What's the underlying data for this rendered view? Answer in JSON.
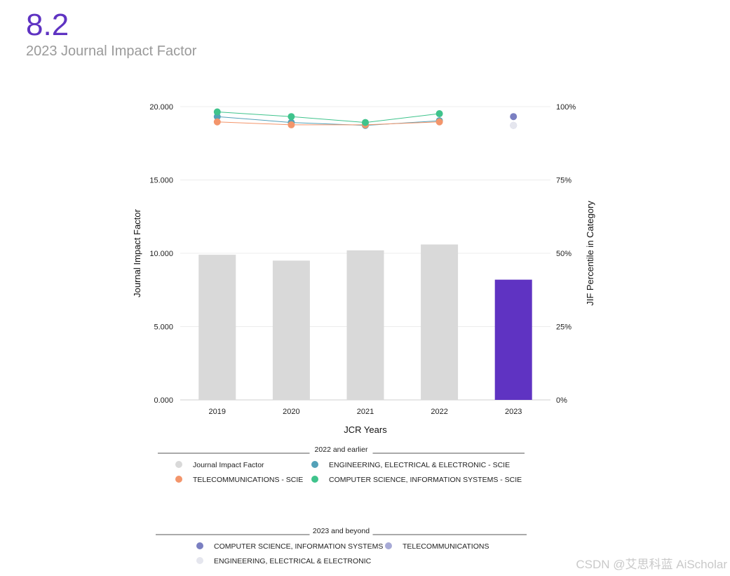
{
  "header": {
    "jif_value": "8.2",
    "jif_label": "2023 Journal Impact Factor"
  },
  "colors": {
    "accent": "#5f33c2",
    "bar_past": "#d9d9d9",
    "bar_current": "#5f33c2",
    "eng_elec": "#53a1b8",
    "telecom": "#f3956b",
    "cs_info": "#3fc38c",
    "cs_info_2023": "#7a7fc1",
    "telecom_2023": "#a7aad6",
    "eng_elec_2023": "#e5e6ee"
  },
  "chart_data": {
    "type": "bar",
    "xlabel": "JCR Years",
    "ylabel": "Journal Impact Factor",
    "ylabel_right": "JIF Percentile in Category",
    "categories": [
      "2019",
      "2020",
      "2021",
      "2022",
      "2023"
    ],
    "ylim": [
      0,
      20
    ],
    "yticks": [
      "0.000",
      "5.000",
      "10.000",
      "15.000",
      "20.000"
    ],
    "y2lim": [
      0,
      100
    ],
    "y2ticks": [
      "0%",
      "25%",
      "50%",
      "75%",
      "100%"
    ],
    "bars": {
      "name": "Journal Impact Factor",
      "values": [
        9.9,
        9.5,
        10.2,
        10.6,
        8.2
      ]
    },
    "percentile_series": [
      {
        "name": "ENGINEERING, ELECTRICAL & ELECTRONIC - SCIE",
        "color": "#53a1b8",
        "values": [
          96.6,
          94.6,
          93.6,
          95.2,
          null
        ]
      },
      {
        "name": "TELECOMMUNICATIONS - SCIE",
        "color": "#f3956b",
        "values": [
          94.8,
          93.8,
          93.8,
          94.8,
          null
        ]
      },
      {
        "name": "COMPUTER SCIENCE, INFORMATION SYSTEMS - SCIE",
        "color": "#3fc38c",
        "values": [
          98.2,
          96.6,
          94.6,
          97.6,
          null
        ]
      },
      {
        "name": "COMPUTER SCIENCE, INFORMATION SYSTEMS",
        "color": "#7a7fc1",
        "values": [
          null,
          null,
          null,
          null,
          96.6
        ]
      },
      {
        "name": "TELECOMMUNICATIONS",
        "color": "#a7aad6",
        "values": [
          null,
          null,
          null,
          null,
          93.6
        ]
      },
      {
        "name": "ENGINEERING, ELECTRICAL & ELECTRONIC",
        "color": "#e5e6ee",
        "values": [
          null,
          null,
          null,
          null,
          93.6
        ]
      }
    ],
    "grid": true
  },
  "legend": {
    "group1_title": "2022 and earlier",
    "group1_items": [
      {
        "label": "Journal Impact Factor",
        "color": "#d9d9d9"
      },
      {
        "label": "ENGINEERING, ELECTRICAL & ELECTRONIC - SCIE",
        "color": "#53a1b8"
      },
      {
        "label": "TELECOMMUNICATIONS - SCIE",
        "color": "#f3956b"
      },
      {
        "label": "COMPUTER SCIENCE, INFORMATION SYSTEMS - SCIE",
        "color": "#3fc38c"
      }
    ],
    "group2_title": "2023 and beyond",
    "group2_items": [
      {
        "label": "COMPUTER SCIENCE, INFORMATION SYSTEMS",
        "color": "#7a7fc1"
      },
      {
        "label": "TELECOMMUNICATIONS",
        "color": "#a7aad6"
      },
      {
        "label": "ENGINEERING, ELECTRICAL & ELECTRONIC",
        "color": "#e5e6ee"
      }
    ]
  },
  "watermark": "CSDN @艾思科蓝 AiScholar"
}
